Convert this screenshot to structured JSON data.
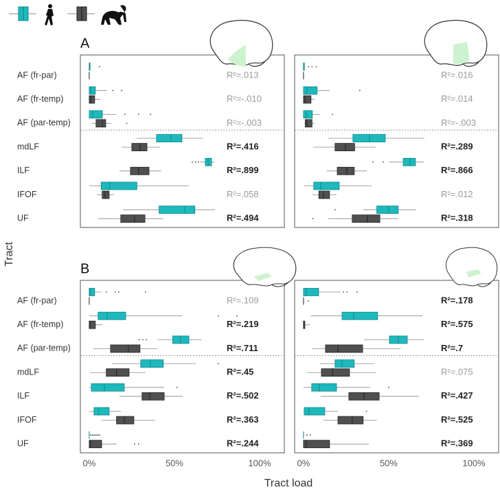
{
  "figure": {
    "y_label": "Tract",
    "x_label": "Tract load"
  },
  "chart_data": [
    {
      "type": "boxplot",
      "panel_label": "A",
      "categories": [
        "AF (fr-par)",
        "AF (fr-temp)",
        "AF (par-temp)",
        "mdLF",
        "ILF",
        "IFOF",
        "UF"
      ],
      "xlim": [
        -5.2,
        114.5
      ],
      "series": [
        {
          "color": "#1db9bc",
          "values": [
            {
              "whislo": 0,
              "q1": 0,
              "med": 0,
              "q3": 0.5,
              "whishi": 1,
              "fliers": [
                6
              ]
            },
            {
              "whislo": 0,
              "q1": 0,
              "med": 1,
              "q3": 3.6,
              "whishi": 10.5,
              "fliers": [
                14,
                19
              ]
            },
            {
              "whislo": 0,
              "q1": 0,
              "med": 2,
              "q3": 7.7,
              "whishi": 15.7,
              "fliers": [
                21,
                29,
                36
              ]
            },
            {
              "whislo": 27.8,
              "q1": 39.5,
              "med": 48,
              "q3": 54.4,
              "whishi": 66.9
            },
            {
              "whislo": 65,
              "q1": 68.1,
              "med": 69.8,
              "q3": 71.8,
              "whishi": 73.4,
              "fliers": [
                60.5,
                62.5,
                64.1
              ]
            },
            {
              "whislo": 0,
              "q1": 7,
              "med": 12,
              "q3": 28,
              "whishi": 58.5
            },
            {
              "whislo": 19.8,
              "q1": 41,
              "med": 56,
              "q3": 62,
              "whishi": 73.8
            }
          ]
        },
        {
          "color": "#505050",
          "values": [
            {
              "whislo": 0,
              "q1": 0,
              "med": 0,
              "q3": 0,
              "whishi": 0.5
            },
            {
              "whislo": 0,
              "q1": 0,
              "med": 1,
              "q3": 3.2,
              "whishi": 6.5
            },
            {
              "whislo": 1.6,
              "q1": 4,
              "med": 7.7,
              "q3": 9.7,
              "whishi": 12.9,
              "fliers": [
                22
              ]
            },
            {
              "whislo": 19,
              "q1": 25,
              "med": 29.8,
              "q3": 33.9,
              "whishi": 41.5
            },
            {
              "whislo": 17.7,
              "q1": 24.2,
              "med": 29,
              "q3": 35.1,
              "whishi": 42.3
            },
            {
              "whislo": 4.4,
              "q1": 7.6,
              "med": 9.3,
              "q3": 11.7,
              "whishi": 14.5
            },
            {
              "whislo": 5.2,
              "q1": 18.5,
              "med": 26.6,
              "q3": 32.7,
              "whishi": 43.5
            }
          ]
        }
      ],
      "r2_labels": [
        "R²=.013",
        "R²=-.010",
        "R²=-.003",
        "R²=.416",
        "R²=.899",
        "R²=.058",
        "R²=.494"
      ],
      "r2_bold": [
        false,
        false,
        false,
        true,
        true,
        false,
        true
      ]
    },
    {
      "type": "boxplot",
      "categories": [
        null,
        null,
        null,
        null,
        null,
        null,
        null
      ],
      "xlim": [
        -5.2,
        114.5
      ],
      "series": [
        {
          "color": "#1db9bc",
          "values": [
            {
              "whislo": 0,
              "q1": 0,
              "med": 0,
              "q3": 0.5,
              "whishi": 1,
              "fliers": [
                3,
                5,
                7.5
              ]
            },
            {
              "whislo": 0,
              "q1": 0,
              "med": 2,
              "q3": 8,
              "whishi": 15.3,
              "fliers": [
                33
              ]
            },
            {
              "whislo": 0,
              "q1": 0,
              "med": 1.6,
              "q3": 5.2,
              "whishi": 9.7,
              "fliers": [
                17
              ]
            },
            {
              "whislo": 14.5,
              "q1": 29,
              "med": 38.7,
              "q3": 48,
              "whishi": 71
            },
            {
              "whislo": 50.4,
              "q1": 58.5,
              "med": 62.5,
              "q3": 65.7,
              "whishi": 70.6,
              "fliers": [
                40.7,
                46.8
              ]
            },
            {
              "whislo": 0.4,
              "q1": 6,
              "med": 10,
              "q3": 21,
              "whishi": 40
            },
            {
              "whislo": 35,
              "q1": 43,
              "med": 50,
              "q3": 55.6,
              "whishi": 66,
              "fliers": [
                18.5
              ]
            }
          ]
        },
        {
          "color": "#505050",
          "values": [
            {
              "whislo": 0,
              "q1": 0,
              "med": 0,
              "q3": 0,
              "whishi": 0.5
            },
            {
              "whislo": 0,
              "q1": 0,
              "med": 1,
              "q3": 4.4,
              "whishi": 6.5
            },
            {
              "whislo": 0.5,
              "q1": 1,
              "med": 2,
              "q3": 5,
              "whishi": 6.5
            },
            {
              "whislo": 5.6,
              "q1": 18.5,
              "med": 24.6,
              "q3": 30,
              "whishi": 42.3
            },
            {
              "whislo": 13.7,
              "q1": 19.8,
              "med": 25.4,
              "q3": 29.8,
              "whishi": 37
            },
            {
              "whislo": 5.2,
              "q1": 9,
              "med": 11.7,
              "q3": 15.3,
              "whishi": 19.4
            },
            {
              "whislo": 14.5,
              "q1": 28.6,
              "med": 37.5,
              "q3": 44.8,
              "whishi": 55.6,
              "fliers": [
                5.6
              ]
            }
          ]
        }
      ],
      "r2_labels": [
        "R²=.016",
        "R²=.014",
        "R²=-.003",
        "R²=.289",
        "R²=.866",
        "R²=.012",
        "R²=.318"
      ],
      "r2_bold": [
        false,
        false,
        false,
        true,
        true,
        false,
        true
      ]
    },
    {
      "type": "boxplot",
      "panel_label": "B",
      "categories": [
        "AF (fr-par)",
        "AF (fr-temp)",
        "AF (par-temp)",
        "mdLF",
        "ILF",
        "IFOF",
        "UF"
      ],
      "xlim": [
        -5.2,
        114.5
      ],
      "xticks": [
        {
          "value": 0,
          "label": "0%"
        },
        {
          "value": 50,
          "label": "50%"
        },
        {
          "value": 100,
          "label": "100%"
        }
      ],
      "series": [
        {
          "color": "#1db9bc",
          "values": [
            {
              "whislo": 0,
              "q1": 0,
              "med": 0.4,
              "q3": 3.2,
              "whishi": 7.3,
              "fliers": [
                10,
                15.3,
                17.3,
                33
              ]
            },
            {
              "whislo": 0,
              "q1": 5.2,
              "med": 10.5,
              "q3": 21.4,
              "whishi": 54.4,
              "fliers": [
                75.8,
                86.7
              ]
            },
            {
              "whislo": 40.3,
              "q1": 49,
              "med": 53.6,
              "q3": 58.5,
              "whishi": 66,
              "fliers": [
                29.4,
                31.5,
                33.5
              ]
            },
            {
              "whislo": 13.3,
              "q1": 30.2,
              "med": 35.9,
              "q3": 43.5,
              "whishi": 62.5,
              "fliers": [
                75.8
              ]
            },
            {
              "whislo": 0,
              "q1": 1.2,
              "med": 8.9,
              "q3": 20.6,
              "whishi": 44,
              "fliers": [
                51.6
              ]
            },
            {
              "whislo": 0,
              "q1": 2.8,
              "med": 5.6,
              "q3": 11.7,
              "whishi": 18.5
            },
            {
              "whislo": 0,
              "q1": 0,
              "med": 0,
              "q3": 0,
              "whishi": 0.5,
              "fliers": [
                1,
                2,
                3,
                4,
                5,
                6
              ]
            }
          ]
        },
        {
          "color": "#505050",
          "values": [
            {
              "whislo": 0,
              "q1": 0,
              "med": 0,
              "q3": 0,
              "whishi": 0.5
            },
            {
              "whislo": 0,
              "q1": 0,
              "med": 0.4,
              "q3": 3.6,
              "whishi": 7.7
            },
            {
              "whislo": 2.4,
              "q1": 12.5,
              "med": 23,
              "q3": 29.8,
              "whishi": 40
            },
            {
              "whislo": 0.4,
              "q1": 10,
              "med": 16,
              "q3": 23.4,
              "whishi": 33
            },
            {
              "whislo": 17.7,
              "q1": 31,
              "med": 35.5,
              "q3": 44,
              "whishi": 54.8
            },
            {
              "whislo": 7.3,
              "q1": 16,
              "med": 20.6,
              "q3": 26.2,
              "whishi": 38.7
            },
            {
              "whislo": 0,
              "q1": 0,
              "med": 0.8,
              "q3": 7.3,
              "whishi": 16,
              "fliers": [
                26.6,
                29
              ]
            }
          ]
        }
      ],
      "r2_labels": [
        "R²=.109",
        "R²=.219",
        "R²=.711",
        "R²=.45",
        "R²=.502",
        "R²=.363",
        "R²=.244"
      ],
      "r2_bold": [
        false,
        true,
        true,
        true,
        true,
        true,
        true
      ]
    },
    {
      "type": "boxplot",
      "categories": [
        null,
        null,
        null,
        null,
        null,
        null,
        null
      ],
      "xlim": [
        -5.2,
        114.5
      ],
      "xticks": [
        {
          "value": 0,
          "label": "0%"
        },
        {
          "value": 50,
          "label": "50%"
        },
        {
          "value": 100,
          "label": "100%"
        }
      ],
      "series": [
        {
          "color": "#1db9bc",
          "values": [
            {
              "whislo": 0,
              "q1": 0,
              "med": 1.6,
              "q3": 8.9,
              "whishi": 21.8,
              "fliers": [
                23.4,
                25.4,
                31.5
              ]
            },
            {
              "whislo": 4.4,
              "q1": 22.6,
              "med": 29.4,
              "q3": 43.5,
              "whishi": 69.8
            },
            {
              "whislo": 35.5,
              "q1": 50.4,
              "med": 55.6,
              "q3": 60.9,
              "whishi": 70.6
            },
            {
              "whislo": 9.7,
              "q1": 18.5,
              "med": 22.6,
              "q3": 29.8,
              "whishi": 41.5
            },
            {
              "whislo": 0,
              "q1": 4.8,
              "med": 9.3,
              "q3": 19.4,
              "whishi": 39,
              "fliers": [
                50
              ]
            },
            {
              "whislo": 0,
              "q1": 0.4,
              "med": 3.2,
              "q3": 12.5,
              "whishi": 20.2,
              "fliers": [
                37
              ]
            },
            {
              "whislo": 0,
              "q1": 0,
              "med": 0,
              "q3": 0,
              "whishi": 0.5,
              "fliers": [
                2,
                4
              ]
            }
          ]
        },
        {
          "color": "#505050",
          "values": [
            {
              "whislo": 0,
              "q1": 0,
              "med": 0,
              "q3": 0,
              "whishi": 0.5,
              "fliers": [
                2.8
              ]
            },
            {
              "whislo": 0,
              "q1": 0,
              "med": 0,
              "q3": 0.8,
              "whishi": 4
            },
            {
              "whislo": 4.8,
              "q1": 12.9,
              "med": 20.2,
              "q3": 34.7,
              "whishi": 57
            },
            {
              "whislo": 2,
              "q1": 10.5,
              "med": 17,
              "q3": 27,
              "whishi": 42.7
            },
            {
              "whislo": 10,
              "q1": 26.6,
              "med": 35.5,
              "q3": 44.4,
              "whishi": 67.7
            },
            {
              "whislo": 11.7,
              "q1": 20.2,
              "med": 28.6,
              "q3": 35,
              "whishi": 43
            },
            {
              "whislo": 0,
              "q1": 0,
              "med": 1.6,
              "q3": 15.3,
              "whishi": 38.3
            }
          ]
        }
      ],
      "r2_labels": [
        "R²=.178",
        "R²=.575",
        "R²=.7",
        "R²=.075",
        "R²=.427",
        "R²=.525",
        "R²=.369"
      ],
      "r2_bold": [
        true,
        true,
        true,
        false,
        true,
        true,
        true
      ]
    }
  ]
}
